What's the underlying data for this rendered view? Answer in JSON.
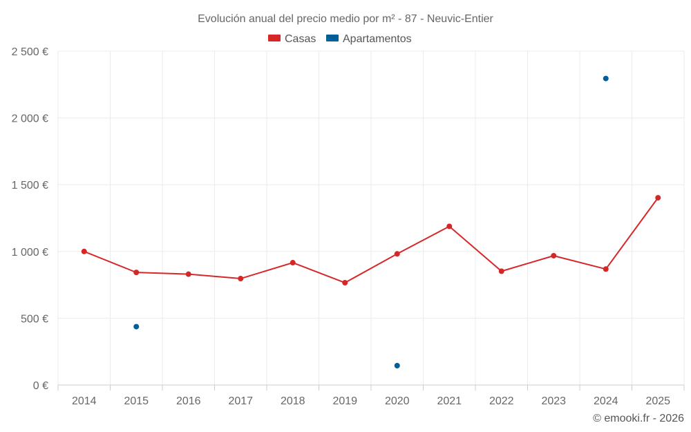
{
  "chart_data": {
    "type": "line",
    "title": "Evolución anual del precio medio por m² - 87 - Neuvic-Entier",
    "categories": [
      "2014",
      "2015",
      "2016",
      "2017",
      "2018",
      "2019",
      "2020",
      "2021",
      "2022",
      "2023",
      "2024",
      "2025"
    ],
    "ylim": [
      0,
      2500
    ],
    "y_ticks": [
      0,
      500,
      1000,
      1500,
      2000,
      2500
    ],
    "y_tick_labels": [
      "0 €",
      "500 €",
      "1 000 €",
      "1 500 €",
      "2 000 €",
      "2 500 €"
    ],
    "grid": true,
    "legend_position": "top-center",
    "series": [
      {
        "name": "Casas",
        "color": "#d62728",
        "connected": true,
        "values": [
          1000,
          843,
          830,
          797,
          916,
          766,
          982,
          1188,
          852,
          968,
          868,
          1402
        ]
      },
      {
        "name": "Apartamentos",
        "color": "#005f99",
        "connected": false,
        "values": [
          null,
          437,
          null,
          null,
          null,
          null,
          145,
          null,
          null,
          null,
          2295,
          null
        ]
      }
    ],
    "credit": "© emooki.fr - 2026"
  }
}
